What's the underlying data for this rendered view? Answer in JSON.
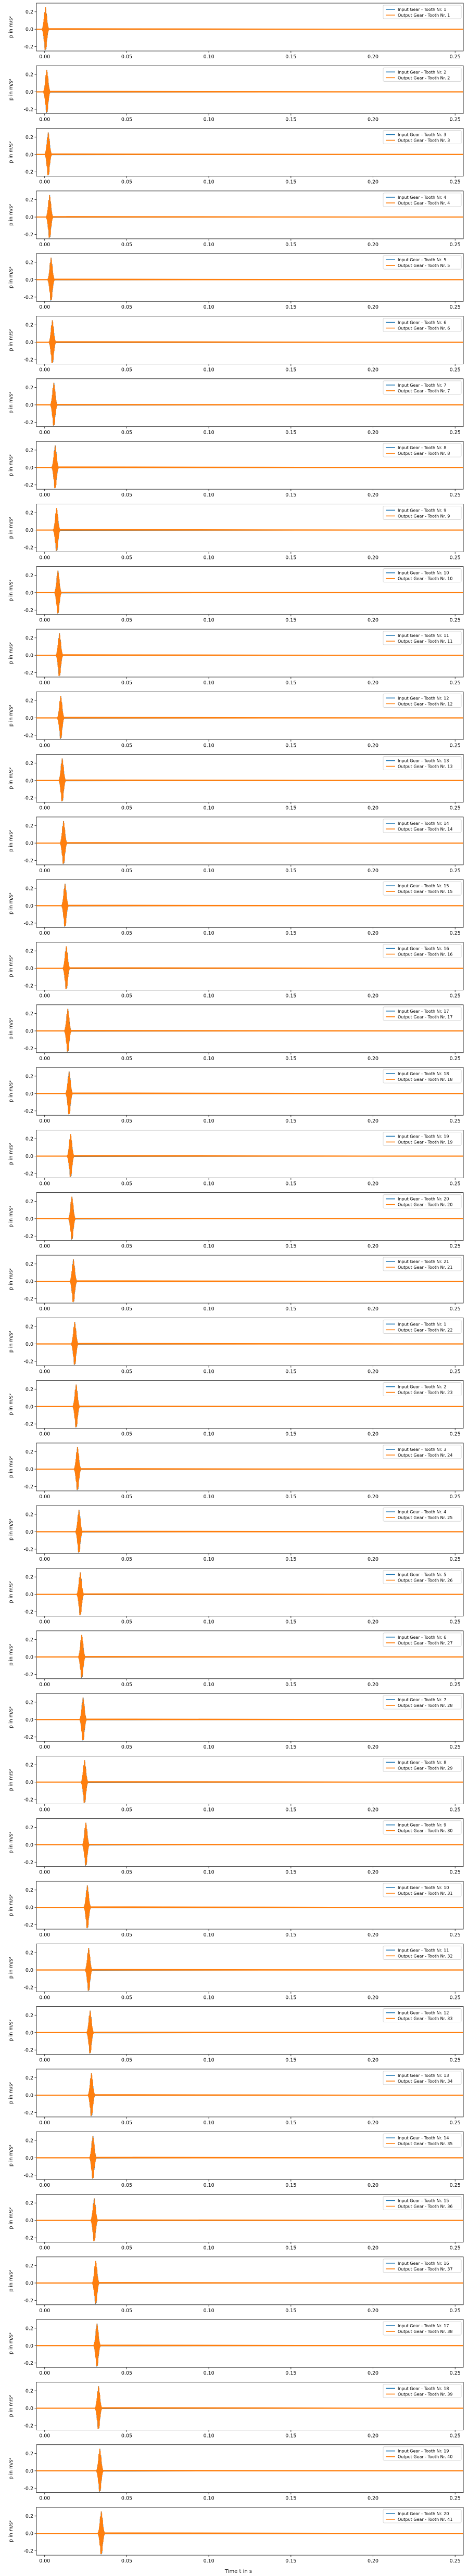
{
  "figure": {
    "xlabel": "Time t in s",
    "ylabel": "p in m/s²",
    "series_colors": {
      "input": "#1f77b4",
      "output": "#ff7f0e"
    }
  },
  "chart_data": {
    "type": "line",
    "panel_count": 41,
    "xlim": [
      -0.005,
      0.255
    ],
    "ylim": [
      -0.25,
      0.3
    ],
    "xticks": [
      0.0,
      0.05,
      0.1,
      0.15,
      0.2,
      0.25
    ],
    "xtick_labels": [
      "0.00",
      "0.05",
      "0.10",
      "0.15",
      "0.20",
      "0.25"
    ],
    "yticks": [
      -0.2,
      0.0,
      0.2
    ],
    "ytick_labels": [
      "-0.2",
      "0.0",
      "0.2"
    ],
    "xlabel": "Time t in s",
    "ylabel": "p in m/s²",
    "grid": false,
    "legend_position": "upper right",
    "burst_amplitude": 0.26,
    "burst_halfwidth_s": 0.002,
    "panels": [
      {
        "input_tooth": 1,
        "output_tooth": 1,
        "burst_time_s": 0.0005
      },
      {
        "input_tooth": 2,
        "output_tooth": 2,
        "burst_time_s": 0.0013
      },
      {
        "input_tooth": 3,
        "output_tooth": 3,
        "burst_time_s": 0.0022
      },
      {
        "input_tooth": 4,
        "output_tooth": 4,
        "burst_time_s": 0.003
      },
      {
        "input_tooth": 5,
        "output_tooth": 5,
        "burst_time_s": 0.0039
      },
      {
        "input_tooth": 6,
        "output_tooth": 6,
        "burst_time_s": 0.0047
      },
      {
        "input_tooth": 7,
        "output_tooth": 7,
        "burst_time_s": 0.0056
      },
      {
        "input_tooth": 8,
        "output_tooth": 8,
        "burst_time_s": 0.0064
      },
      {
        "input_tooth": 9,
        "output_tooth": 9,
        "burst_time_s": 0.0073
      },
      {
        "input_tooth": 10,
        "output_tooth": 10,
        "burst_time_s": 0.0081
      },
      {
        "input_tooth": 11,
        "output_tooth": 11,
        "burst_time_s": 0.009
      },
      {
        "input_tooth": 12,
        "output_tooth": 12,
        "burst_time_s": 0.0098
      },
      {
        "input_tooth": 13,
        "output_tooth": 13,
        "burst_time_s": 0.0107
      },
      {
        "input_tooth": 14,
        "output_tooth": 14,
        "burst_time_s": 0.0115
      },
      {
        "input_tooth": 15,
        "output_tooth": 15,
        "burst_time_s": 0.0124
      },
      {
        "input_tooth": 16,
        "output_tooth": 16,
        "burst_time_s": 0.0132
      },
      {
        "input_tooth": 17,
        "output_tooth": 17,
        "burst_time_s": 0.0141
      },
      {
        "input_tooth": 18,
        "output_tooth": 18,
        "burst_time_s": 0.0149
      },
      {
        "input_tooth": 19,
        "output_tooth": 19,
        "burst_time_s": 0.0158
      },
      {
        "input_tooth": 20,
        "output_tooth": 20,
        "burst_time_s": 0.0166
      },
      {
        "input_tooth": 21,
        "output_tooth": 21,
        "burst_time_s": 0.0175
      },
      {
        "input_tooth": 1,
        "output_tooth": 22,
        "burst_time_s": 0.0183
      },
      {
        "input_tooth": 2,
        "output_tooth": 23,
        "burst_time_s": 0.0192
      },
      {
        "input_tooth": 3,
        "output_tooth": 24,
        "burst_time_s": 0.02
      },
      {
        "input_tooth": 4,
        "output_tooth": 25,
        "burst_time_s": 0.0209
      },
      {
        "input_tooth": 5,
        "output_tooth": 26,
        "burst_time_s": 0.0217
      },
      {
        "input_tooth": 6,
        "output_tooth": 27,
        "burst_time_s": 0.0226
      },
      {
        "input_tooth": 7,
        "output_tooth": 28,
        "burst_time_s": 0.0234
      },
      {
        "input_tooth": 8,
        "output_tooth": 29,
        "burst_time_s": 0.0243
      },
      {
        "input_tooth": 9,
        "output_tooth": 30,
        "burst_time_s": 0.0251
      },
      {
        "input_tooth": 10,
        "output_tooth": 31,
        "burst_time_s": 0.026
      },
      {
        "input_tooth": 11,
        "output_tooth": 32,
        "burst_time_s": 0.0268
      },
      {
        "input_tooth": 12,
        "output_tooth": 33,
        "burst_time_s": 0.0277
      },
      {
        "input_tooth": 13,
        "output_tooth": 34,
        "burst_time_s": 0.0285
      },
      {
        "input_tooth": 14,
        "output_tooth": 35,
        "burst_time_s": 0.0294
      },
      {
        "input_tooth": 15,
        "output_tooth": 36,
        "burst_time_s": 0.0302
      },
      {
        "input_tooth": 16,
        "output_tooth": 37,
        "burst_time_s": 0.0311
      },
      {
        "input_tooth": 17,
        "output_tooth": 38,
        "burst_time_s": 0.0319
      },
      {
        "input_tooth": 18,
        "output_tooth": 39,
        "burst_time_s": 0.0328
      },
      {
        "input_tooth": 19,
        "output_tooth": 40,
        "burst_time_s": 0.0336
      },
      {
        "input_tooth": 20,
        "output_tooth": 41,
        "burst_time_s": 0.0345
      }
    ],
    "legend_templates": {
      "input": "Input Gear - Tooth Nr. {n}",
      "output": "Output Gear - Tooth Nr. {n}"
    }
  }
}
